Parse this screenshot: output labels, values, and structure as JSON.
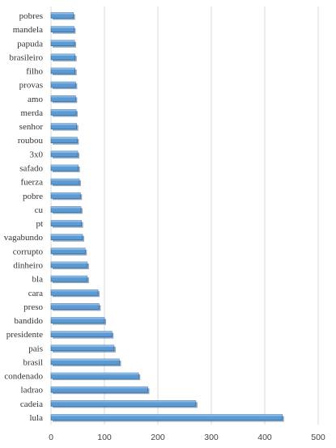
{
  "chart_data": {
    "type": "bar",
    "orientation": "horizontal",
    "categories": [
      "lula",
      "cadeia",
      "ladrao",
      "condenado",
      "brasil",
      "pais",
      "presidente",
      "bandido",
      "preso",
      "cara",
      "bla",
      "dinheiro",
      "corrupto",
      "vagabundo",
      "pt",
      "cu",
      "pobre",
      "fuerza",
      "safado",
      "3x0",
      "roubou",
      "senhor",
      "merda",
      "amo",
      "provas",
      "filho",
      "brasileiro",
      "papuda",
      "mandela",
      "pobres"
    ],
    "values": [
      433,
      271,
      181,
      164,
      128,
      118,
      114,
      100,
      90,
      88,
      68,
      68,
      64,
      59,
      57,
      56,
      55,
      53,
      51,
      50,
      49,
      48,
      47,
      46,
      46,
      45,
      45,
      44,
      43,
      42
    ],
    "xlim": [
      0,
      500
    ],
    "xticks": [
      "0",
      "100",
      "200",
      "300",
      "400",
      "500"
    ],
    "grid": true,
    "bar_color": "#5B9BD5",
    "bar_edge_color": "#2E5F8F",
    "title": "",
    "xlabel": "",
    "ylabel": ""
  }
}
